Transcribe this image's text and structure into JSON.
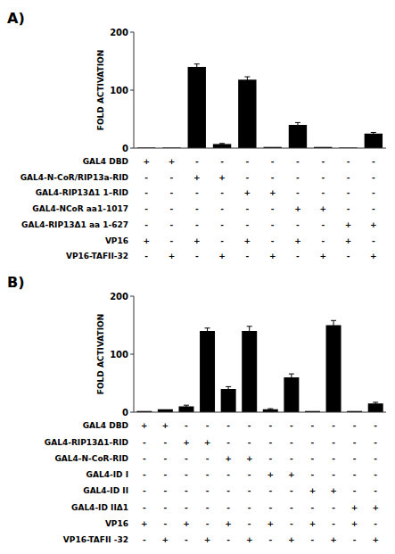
{
  "chart_data": [
    {
      "type": "bar",
      "title": "A)",
      "y_label": "FOLD ACTIVATION",
      "categories": [
        null,
        null,
        null,
        null,
        null,
        null,
        null,
        null,
        null,
        null
      ],
      "values": [
        1,
        1,
        140,
        7,
        118,
        2,
        40,
        2,
        1,
        25
      ],
      "errors": [
        0,
        0,
        5,
        1,
        5,
        0,
        4,
        0,
        0,
        2
      ],
      "color": "#000000",
      "ylim": [
        0,
        200
      ],
      "yticks": [
        0,
        100,
        200
      ],
      "tick_labels": "y",
      "table": [
        [
          "GAL4 DBD",
          "+",
          "+",
          "-",
          "-",
          "-",
          "-",
          "-",
          "-",
          "-",
          "-"
        ],
        [
          "GAL4-N-CoR/RIP13a-RID",
          "-",
          "-",
          "+",
          "+",
          "-",
          "-",
          "-",
          "-",
          "-",
          "-"
        ],
        [
          "GAL4-RIP13Δ1 1–RID",
          "-",
          "-",
          "-",
          "-",
          "+",
          "+",
          "-",
          "-",
          "-",
          "-"
        ],
        [
          "GAL4-NCoR aa1-1017",
          "-",
          "-",
          "-",
          "-",
          "-",
          "-",
          "+",
          "+",
          "-",
          "-"
        ],
        [
          "GAL4-RIP13Δ1 aa 1-627",
          "-",
          "-",
          "-",
          "-",
          "-",
          "-",
          "-",
          "-",
          "+",
          "+"
        ],
        [
          "VP16",
          "+",
          "-",
          "+",
          "-",
          "+",
          "-",
          "+",
          "-",
          "+",
          "-"
        ],
        [
          "VP16-TAFII-32",
          "-",
          "+",
          "-",
          "+",
          "-",
          "+",
          "-",
          "+",
          "-",
          "+"
        ]
      ]
    },
    {
      "type": "bar",
      "title": "B)",
      "y_label": "FOLD ACTIVATION",
      "categories": [
        null,
        null,
        null,
        null,
        null,
        null,
        null,
        null,
        null,
        null,
        null,
        null
      ],
      "values": [
        2,
        5,
        10,
        140,
        40,
        140,
        5,
        60,
        2,
        150,
        2,
        15
      ],
      "errors": [
        0,
        0,
        2,
        5,
        4,
        8,
        1,
        6,
        0,
        8,
        0,
        2
      ],
      "color": "#000000",
      "ylim": [
        0,
        200
      ],
      "yticks": [
        0,
        100,
        200
      ],
      "tick_labels": "y",
      "table": [
        [
          "GAL4 DBD",
          "+",
          "+",
          "-",
          "-",
          "-",
          "-",
          "-",
          "-",
          "-",
          "-",
          "-",
          "-"
        ],
        [
          "GAL4-RIP13Δ1-RID",
          "-",
          "-",
          "+",
          "+",
          "-",
          "-",
          "-",
          "-",
          "-",
          "-",
          "-",
          "-"
        ],
        [
          "GAL4-N-CoR-RID",
          "-",
          "-",
          "-",
          "-",
          "+",
          "+",
          "-",
          "-",
          "-",
          "-",
          "-",
          "-"
        ],
        [
          "GAL4-ID I",
          "-",
          "-",
          "-",
          "-",
          "-",
          "-",
          "+",
          "+",
          "-",
          "-",
          "-",
          "-"
        ],
        [
          "GAL4-ID II",
          "-",
          "-",
          "-",
          "-",
          "-",
          "-",
          "-",
          "-",
          "+",
          "+",
          "-",
          "-"
        ],
        [
          "GAL4-ID IIΔ1",
          "-",
          "-",
          "-",
          "-",
          "-",
          "-",
          "-",
          "-",
          "-",
          "-",
          "+",
          "+"
        ],
        [
          "VP16",
          "+",
          "-",
          "+",
          "-",
          "+",
          "-",
          "+",
          "-",
          "+",
          "-",
          "+",
          "-"
        ],
        [
          "VP16-TAFII -32",
          "-",
          "+",
          "-",
          "+",
          "-",
          "+",
          "-",
          "+",
          "-",
          "+",
          "-",
          "+"
        ]
      ]
    }
  ]
}
